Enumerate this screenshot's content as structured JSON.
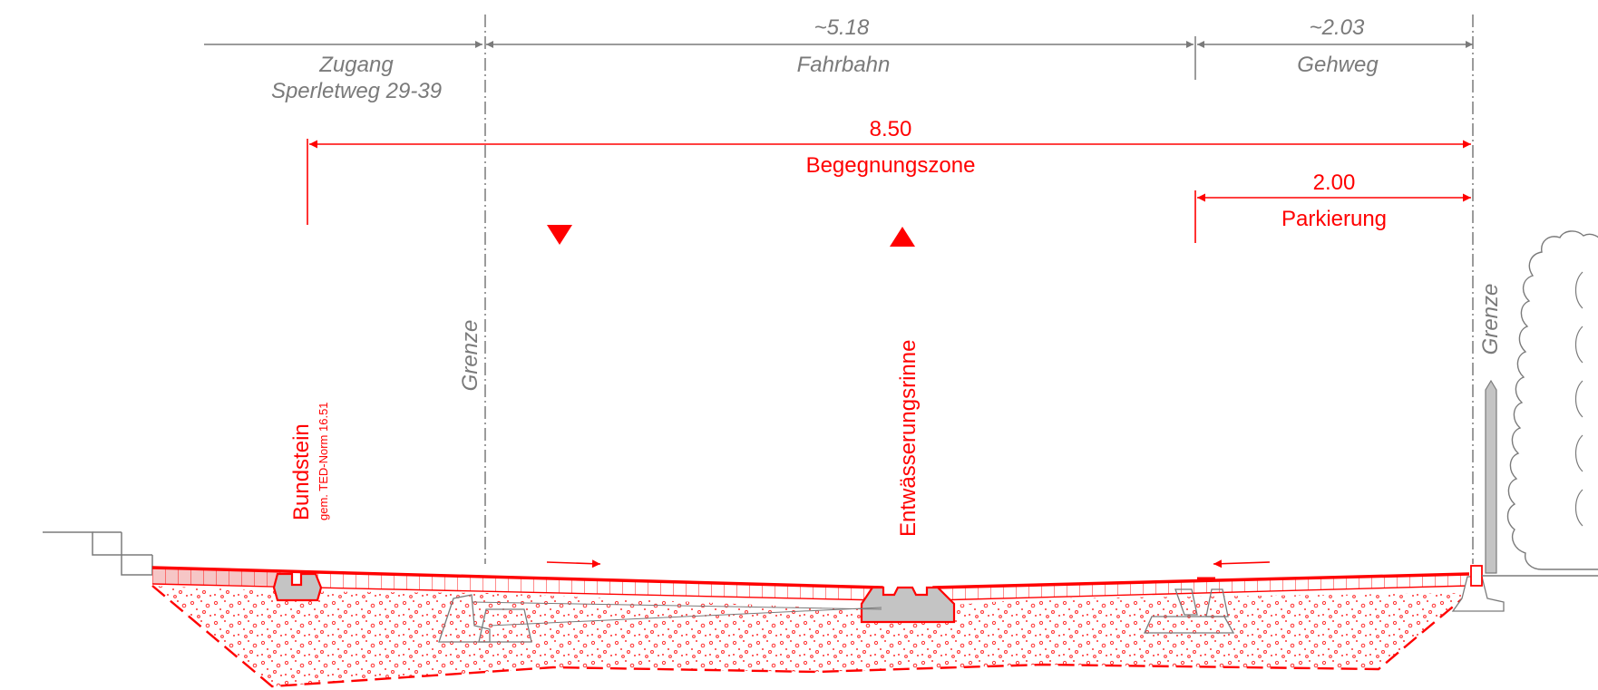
{
  "existing": {
    "zugang_line1": "Zugang",
    "zugang_line2": "Sperletweg 29-39",
    "fahrbahn_width": "~5.18",
    "fahrbahn_label": "Fahrbahn",
    "gehweg_width": "~2.03",
    "gehweg_label": "Gehweg"
  },
  "proposed": {
    "total_width": "8.50",
    "total_label": "Begegnungszone",
    "parking_width": "2.00",
    "parking_label": "Parkierung"
  },
  "boundaries": {
    "left_label": "Grenze",
    "right_label": "Grenze"
  },
  "annotations": {
    "bundstein_label": "Bundstein",
    "bundstein_norm": "gem. TED-Norm 16.51",
    "drainage_label": "Entwässerungsrinne"
  },
  "colors": {
    "proposed": "#ff0000",
    "existing": "#7a7a7a",
    "fill_pink": "#f6c6c6"
  }
}
